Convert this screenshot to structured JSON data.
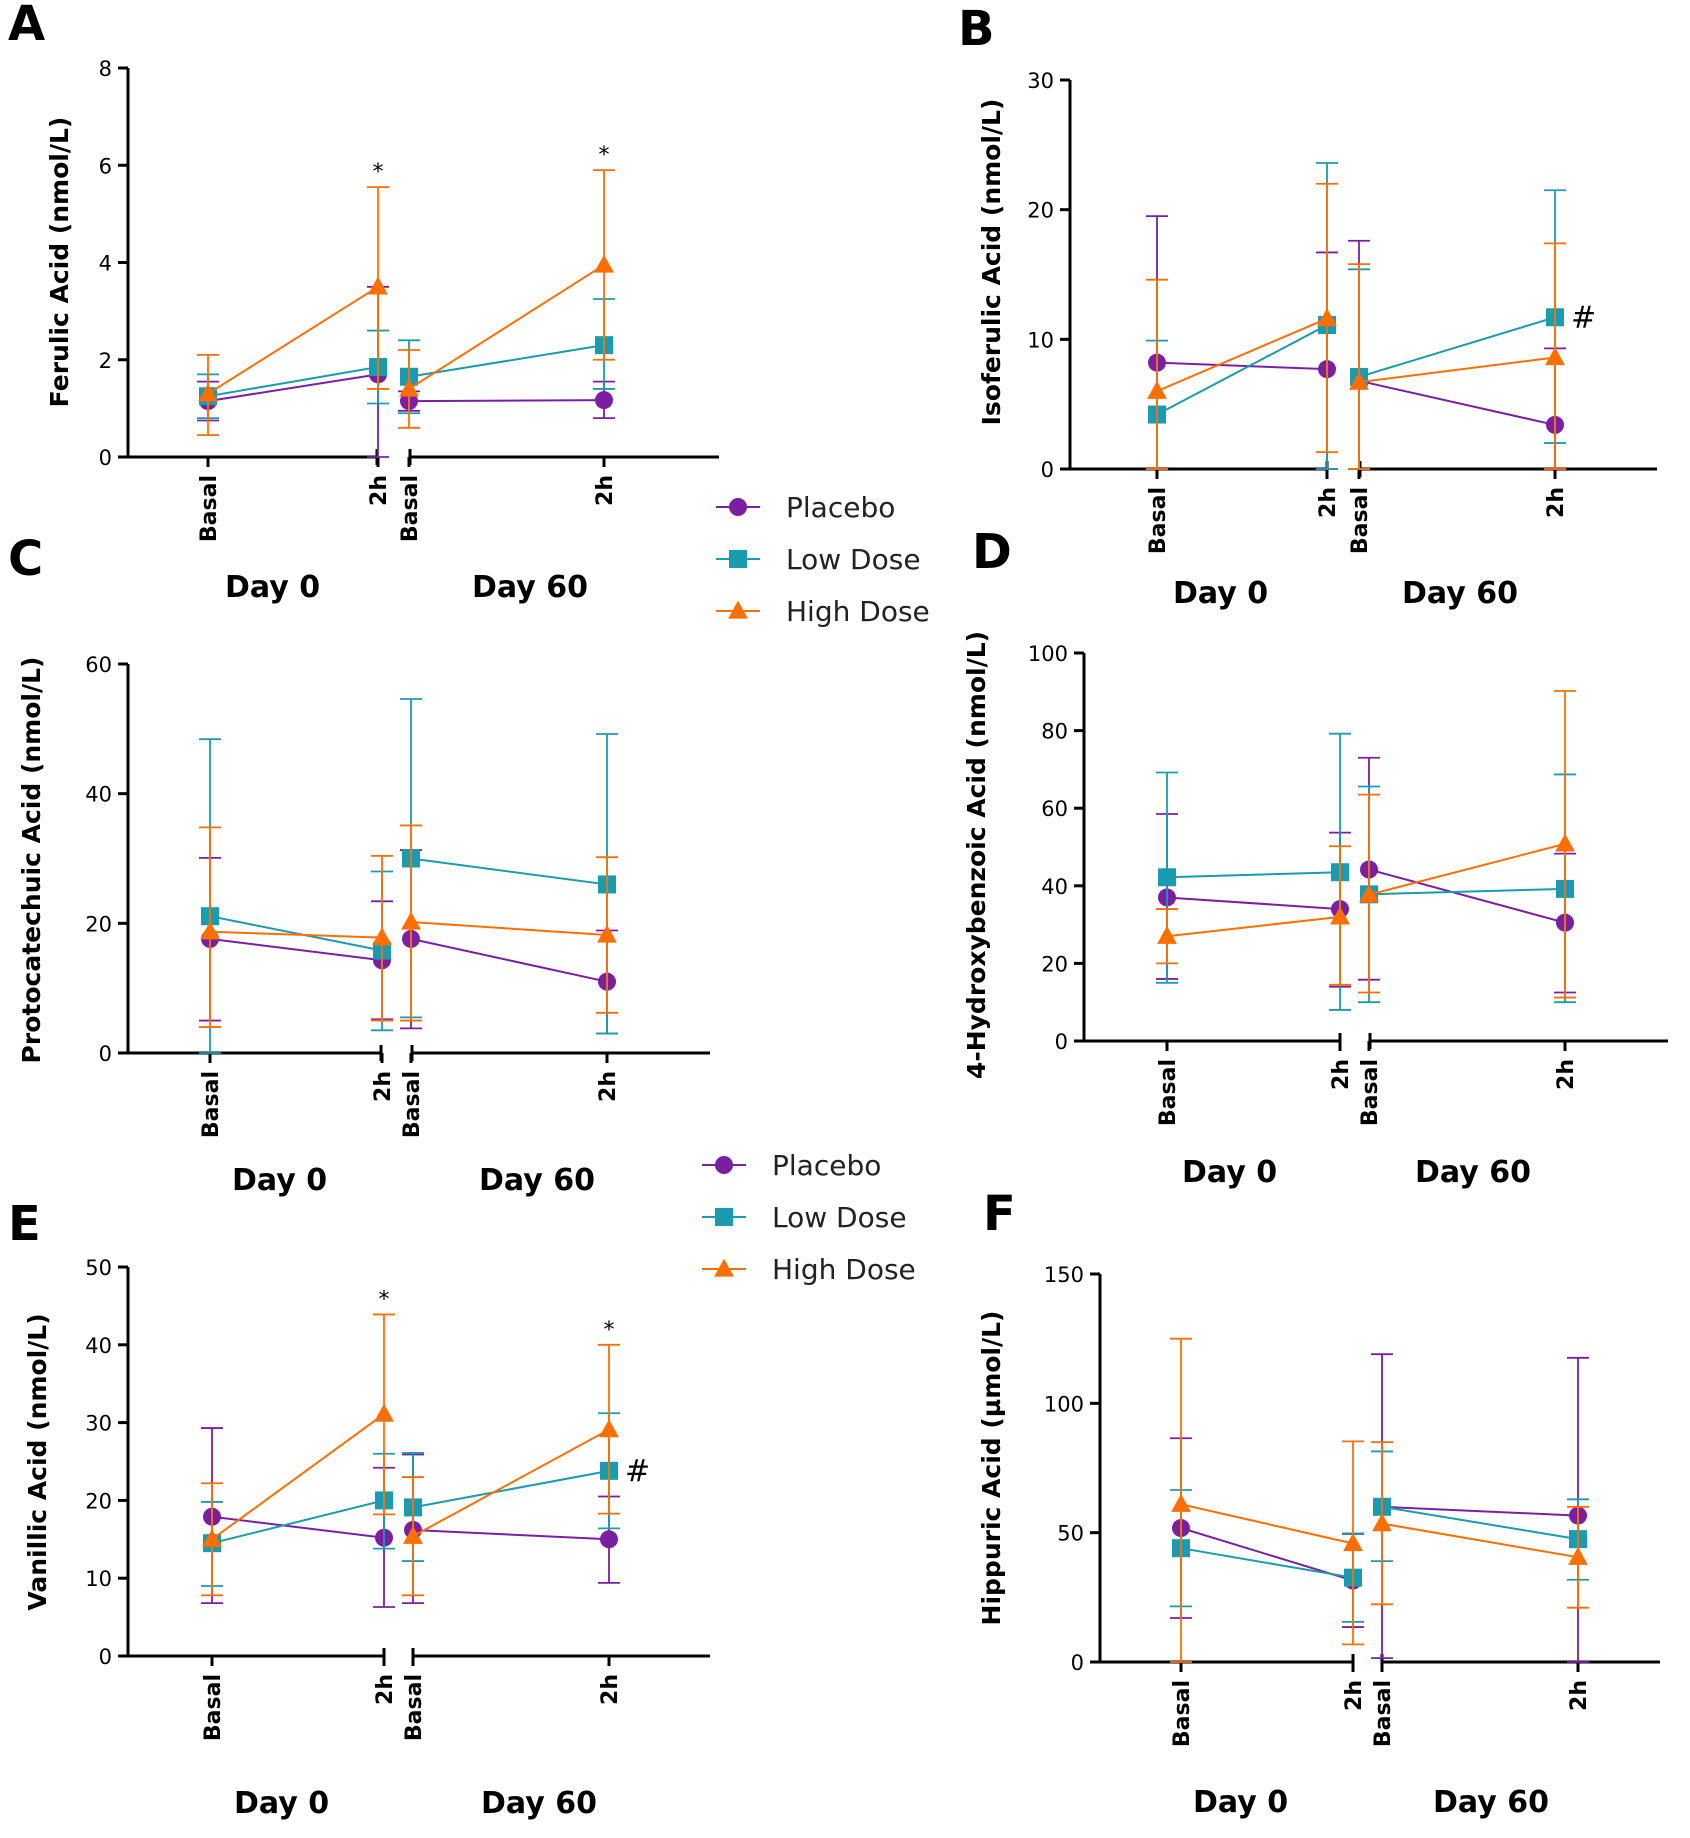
{
  "legend_blocks": [
    {
      "panel": "AB",
      "items": [
        {
          "label": "Placebo",
          "color": "#7B1FA2",
          "marker": "circle"
        },
        {
          "label": "Low Dose",
          "color": "#1B9BB0",
          "marker": "square"
        },
        {
          "label": "High Dose",
          "color": "#FF6F00",
          "marker": "triangle"
        }
      ]
    },
    {
      "panel": "CD",
      "items": [
        {
          "label": "Placebo",
          "color": "#7B1FA2",
          "marker": "circle"
        },
        {
          "label": "Low Dose",
          "color": "#1B9BB0",
          "marker": "square"
        },
        {
          "label": "High Dose",
          "color": "#FF6F00",
          "marker": "triangle"
        }
      ]
    }
  ],
  "chart_data": [
    {
      "panel": "A",
      "type": "line",
      "ylabel": "Ferulic Acid (nmol/L)",
      "ylim": [
        0,
        8
      ],
      "yticks": [
        0,
        2,
        4,
        6,
        8
      ],
      "x": [
        "Basal",
        "2h",
        "Basal",
        "2h"
      ],
      "groups": [
        "Day 0",
        "Day 60"
      ],
      "series": [
        {
          "name": "Placebo",
          "color": "#7B1FA2",
          "marker": "circle",
          "values": [
            1.15,
            1.7,
            1.15,
            1.17
          ],
          "err_low": [
            0.75,
            0.0,
            0.95,
            0.8
          ],
          "err_high": [
            1.55,
            3.5,
            1.35,
            1.55
          ]
        },
        {
          "name": "Low Dose",
          "color": "#1B9BB0",
          "marker": "square",
          "values": [
            1.25,
            1.85,
            1.65,
            2.3
          ],
          "err_low": [
            0.8,
            1.1,
            0.9,
            1.4
          ],
          "err_high": [
            1.7,
            2.6,
            2.4,
            3.25
          ]
        },
        {
          "name": "High Dose",
          "color": "#FF6F00",
          "marker": "triangle",
          "values": [
            1.3,
            3.5,
            1.4,
            3.95
          ],
          "err_low": [
            0.45,
            1.4,
            0.6,
            2.0
          ],
          "err_high": [
            2.1,
            5.55,
            2.2,
            5.9
          ]
        }
      ],
      "annotations": [
        {
          "text": "*",
          "x": "2h",
          "group": "Day 0",
          "y": 5.55
        },
        {
          "text": "*",
          "x": "2h",
          "group": "Day 60",
          "y": 5.9
        }
      ]
    },
    {
      "panel": "B",
      "type": "line",
      "ylabel": "Isoferulic Acid (nmol/L)",
      "ylim": [
        0,
        30
      ],
      "yticks": [
        0,
        10,
        20,
        30
      ],
      "x": [
        "Basal",
        "2h",
        "Basal",
        "2h"
      ],
      "groups": [
        "Day 0",
        "Day 60"
      ],
      "series": [
        {
          "name": "Placebo",
          "color": "#7B1FA2",
          "marker": "circle",
          "values": [
            8.2,
            7.7,
            6.8,
            3.4
          ],
          "err_low": [
            0,
            0,
            0,
            0
          ],
          "err_high": [
            19.5,
            16.7,
            17.6,
            9.3
          ]
        },
        {
          "name": "Low Dose",
          "color": "#1B9BB0",
          "marker": "square",
          "values": [
            4.2,
            11.1,
            7.1,
            11.7
          ],
          "err_low": [
            0,
            0,
            0,
            2.0
          ],
          "err_high": [
            9.9,
            23.6,
            15.4,
            21.5
          ]
        },
        {
          "name": "High Dose",
          "color": "#FF6F00",
          "marker": "triangle",
          "values": [
            6.0,
            11.6,
            6.7,
            8.6
          ],
          "err_low": [
            0,
            1.3,
            0,
            0
          ],
          "err_high": [
            14.6,
            22.0,
            15.8,
            17.4
          ]
        }
      ],
      "annotations": [
        {
          "text": "#",
          "x": "2h",
          "group": "Day 60",
          "y": 11.7
        }
      ]
    },
    {
      "panel": "C",
      "type": "line",
      "ylabel": "Protocatechuic Acid (nmol/L)",
      "ylim": [
        0,
        60
      ],
      "yticks": [
        0,
        20,
        40,
        60
      ],
      "x": [
        "Basal",
        "2h",
        "Basal",
        "2h"
      ],
      "groups": [
        "Day 0",
        "Day 60"
      ],
      "series": [
        {
          "name": "Placebo",
          "color": "#7B1FA2",
          "marker": "circle",
          "values": [
            17.6,
            14.3,
            17.6,
            11.0
          ],
          "err_low": [
            5.0,
            5.2,
            3.8,
            3.0
          ],
          "err_high": [
            30.1,
            23.4,
            31.3,
            18.9
          ]
        },
        {
          "name": "Low Dose",
          "color": "#1B9BB0",
          "marker": "square",
          "values": [
            21.1,
            15.8,
            30.0,
            26.0
          ],
          "err_low": [
            0,
            3.5,
            5.5,
            3.0
          ],
          "err_high": [
            48.4,
            28.0,
            54.6,
            49.2
          ]
        },
        {
          "name": "High Dose",
          "color": "#FF6F00",
          "marker": "triangle",
          "values": [
            18.7,
            17.8,
            20.2,
            18.2
          ],
          "err_low": [
            4.0,
            5.0,
            5.0,
            6.2
          ],
          "err_high": [
            34.8,
            30.4,
            35.1,
            30.2
          ]
        }
      ]
    },
    {
      "panel": "D",
      "type": "line",
      "ylabel": "4-Hydroxybenzoic Acid (nmol/L)",
      "ylim": [
        0,
        100
      ],
      "yticks": [
        0,
        20,
        40,
        60,
        80,
        100
      ],
      "x": [
        "Basal",
        "2h",
        "Basal",
        "2h"
      ],
      "groups": [
        "Day 0",
        "Day 60"
      ],
      "series": [
        {
          "name": "Placebo",
          "color": "#7B1FA2",
          "marker": "circle",
          "values": [
            37.0,
            34.0,
            44.2,
            30.5
          ],
          "err_low": [
            16.0,
            14.0,
            15.8,
            12.5
          ],
          "err_high": [
            58.5,
            53.7,
            73.0,
            48.3
          ]
        },
        {
          "name": "Low Dose",
          "color": "#1B9BB0",
          "marker": "square",
          "values": [
            42.2,
            43.5,
            37.8,
            39.2
          ],
          "err_low": [
            15.0,
            8.0,
            10.0,
            10.0
          ],
          "err_high": [
            69.2,
            79.2,
            65.6,
            68.7
          ]
        },
        {
          "name": "High Dose",
          "color": "#FF6F00",
          "marker": "triangle",
          "values": [
            27.0,
            32.0,
            37.7,
            50.8
          ],
          "err_low": [
            20.0,
            14.5,
            12.5,
            11.2
          ],
          "err_high": [
            34.0,
            50.2,
            63.5,
            90.2
          ]
        }
      ]
    },
    {
      "panel": "E",
      "type": "line",
      "ylabel": "Vanillic Acid (nmol/L)",
      "ylim": [
        0,
        50
      ],
      "yticks": [
        0,
        10,
        20,
        30,
        40,
        50
      ],
      "x": [
        "Basal",
        "2h",
        "Basal",
        "2h"
      ],
      "groups": [
        "Day 0",
        "Day 60"
      ],
      "series": [
        {
          "name": "Placebo",
          "color": "#7B1FA2",
          "marker": "circle",
          "values": [
            17.9,
            15.2,
            16.2,
            15.0
          ],
          "err_low": [
            6.8,
            6.3,
            6.8,
            9.4
          ],
          "err_high": [
            29.3,
            24.2,
            25.9,
            20.5
          ]
        },
        {
          "name": "Low Dose",
          "color": "#1B9BB0",
          "marker": "square",
          "values": [
            14.5,
            20.0,
            19.1,
            23.8
          ],
          "err_low": [
            9.0,
            13.8,
            12.2,
            16.4
          ],
          "err_high": [
            19.8,
            26.0,
            26.1,
            31.2
          ]
        },
        {
          "name": "High Dose",
          "color": "#FF6F00",
          "marker": "triangle",
          "values": [
            15.0,
            31.1,
            15.4,
            29.1
          ],
          "err_low": [
            7.8,
            18.2,
            7.8,
            18.3
          ],
          "err_high": [
            22.2,
            43.9,
            23.0,
            40.0
          ]
        }
      ],
      "annotations": [
        {
          "text": "*",
          "x": "2h",
          "group": "Day 0",
          "y": 43.9
        },
        {
          "text": "*",
          "x": "2h",
          "group": "Day 60",
          "y": 40.0
        },
        {
          "text": "#",
          "x": "2h",
          "group": "Day 60",
          "y": 23.8
        }
      ]
    },
    {
      "panel": "F",
      "type": "line",
      "ylabel": "Hippuric Acid (µmol/L)",
      "ylim": [
        0,
        150
      ],
      "yticks": [
        0,
        50,
        100,
        150
      ],
      "x": [
        "Basal",
        "2h",
        "Basal",
        "2h"
      ],
      "groups": [
        "Day 0",
        "Day 60"
      ],
      "series": [
        {
          "name": "Placebo",
          "color": "#7B1FA2",
          "marker": "circle",
          "values": [
            51.8,
            31.5,
            60.0,
            56.6
          ],
          "err_low": [
            17.0,
            13.5,
            1.5,
            0
          ],
          "err_high": [
            86.5,
            49.5,
            119.0,
            117.6
          ]
        },
        {
          "name": "Low Dose",
          "color": "#1B9BB0",
          "marker": "square",
          "values": [
            44.0,
            32.6,
            60.0,
            47.5
          ],
          "err_low": [
            21.5,
            15.5,
            39.0,
            31.8
          ],
          "err_high": [
            66.5,
            49.7,
            81.4,
            62.9
          ]
        },
        {
          "name": "High Dose",
          "color": "#FF6F00",
          "marker": "triangle",
          "values": [
            61.0,
            45.8,
            53.5,
            40.5
          ],
          "err_low": [
            0,
            6.8,
            22.3,
            21.0
          ],
          "err_high": [
            125.0,
            85.3,
            85.0,
            60.0
          ]
        }
      ]
    }
  ]
}
